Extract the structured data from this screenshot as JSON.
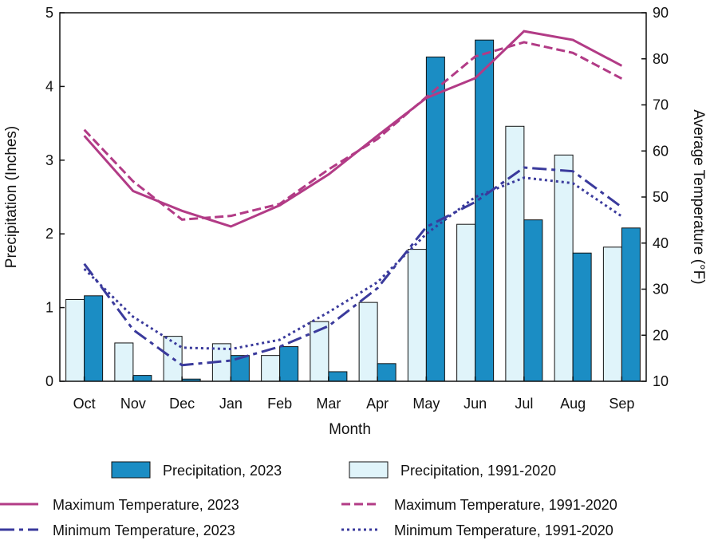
{
  "chart_data": {
    "type": "bar",
    "categories": [
      "Oct",
      "Nov",
      "Dec",
      "Jan",
      "Feb",
      "Mar",
      "Apr",
      "May",
      "Jun",
      "Jul",
      "Aug",
      "Sep"
    ],
    "xlabel": "Month",
    "ylabel": "Precipitation (Inches)",
    "y2label": "Average Temperature (°F)",
    "ylim": [
      0,
      5
    ],
    "y2lim": [
      10,
      90
    ],
    "yticks": [
      0,
      1,
      2,
      3,
      4,
      5
    ],
    "y2ticks": [
      10,
      20,
      30,
      40,
      50,
      60,
      70,
      80,
      90
    ],
    "bar_series": [
      {
        "name": "Precipitation, 1991-2020",
        "color": "#e0f4fa",
        "values": [
          1.11,
          0.52,
          0.61,
          0.51,
          0.35,
          0.81,
          1.07,
          1.79,
          2.13,
          3.46,
          3.07,
          1.82
        ]
      },
      {
        "name": "Precipitation, 2023",
        "color": "#1b8dc4",
        "values": [
          1.16,
          0.08,
          0.03,
          0.35,
          0.47,
          0.13,
          0.24,
          4.4,
          4.63,
          2.19,
          1.74,
          2.08
        ]
      }
    ],
    "line_series": [
      {
        "name": "Maximum Temperature, 2023",
        "color": "#b23b86",
        "dash": "solid",
        "values": [
          63.3,
          51.3,
          47.0,
          43.6,
          48.2,
          54.9,
          63.3,
          71.5,
          75.8,
          86.0,
          84.1,
          78.5
        ]
      },
      {
        "name": "Maximum Temperature, 1991-2020",
        "color": "#b23b86",
        "dash": "dashed",
        "values": [
          64.6,
          53.4,
          45.1,
          45.9,
          48.5,
          56.0,
          62.6,
          71.7,
          80.5,
          83.6,
          81.3,
          75.7
        ]
      },
      {
        "name": "Minimum Temperature, 2023",
        "color": "#3a3a9c",
        "dash": "dashdot",
        "values": [
          35.5,
          21.2,
          13.5,
          14.5,
          17.5,
          22.0,
          30.2,
          43.5,
          48.9,
          56.4,
          55.6,
          47.8
        ]
      },
      {
        "name": "Minimum Temperature, 1991-2020",
        "color": "#3a3a9c",
        "dash": "dotted",
        "values": [
          34.4,
          24.0,
          17.3,
          17.0,
          19.0,
          25.0,
          31.5,
          42.0,
          50.0,
          54.2,
          53.0,
          45.8
        ]
      }
    ],
    "legend_placement": "bottom",
    "grid": false
  }
}
